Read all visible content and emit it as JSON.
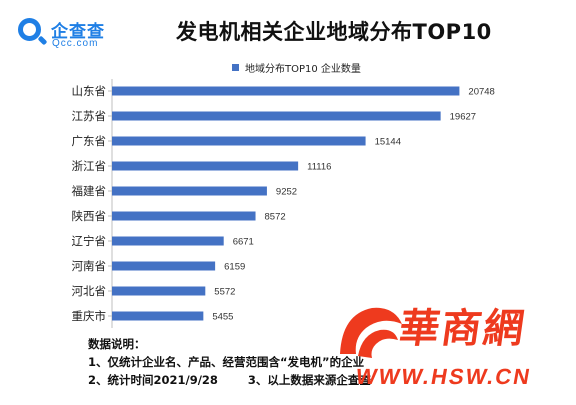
{
  "header": {
    "logo_cn": "企查查",
    "logo_en": "Qcc.com",
    "title": "发电机相关企业地域分布TOP10"
  },
  "chart_data": {
    "type": "bar",
    "orientation": "horizontal",
    "title": "发电机相关企业地域分布TOP10",
    "legend_position": "top",
    "grid": false,
    "xlim": [
      0,
      21500
    ],
    "categories": [
      "山东省",
      "江苏省",
      "广东省",
      "浙江省",
      "福建省",
      "陕西省",
      "辽宁省",
      "河南省",
      "河北省",
      "重庆市"
    ],
    "series": [
      {
        "name": "地域分布TOP10 企业数量",
        "color": "#4472c4",
        "values": [
          20748,
          19627,
          15144,
          11116,
          9252,
          8572,
          6671,
          6159,
          5572,
          5455
        ]
      }
    ]
  },
  "notes": {
    "heading": "数据说明：",
    "line1": "1、仅统计企业名、产品、经营范围含“发电机”的企业",
    "line2a": "2、统计时间2021/9/28",
    "line2b": "3、以上数据来源企查查"
  },
  "watermark": {
    "brand": "華商網",
    "url": "WWW.HSW.CN",
    "color": "#ee3a1e"
  }
}
